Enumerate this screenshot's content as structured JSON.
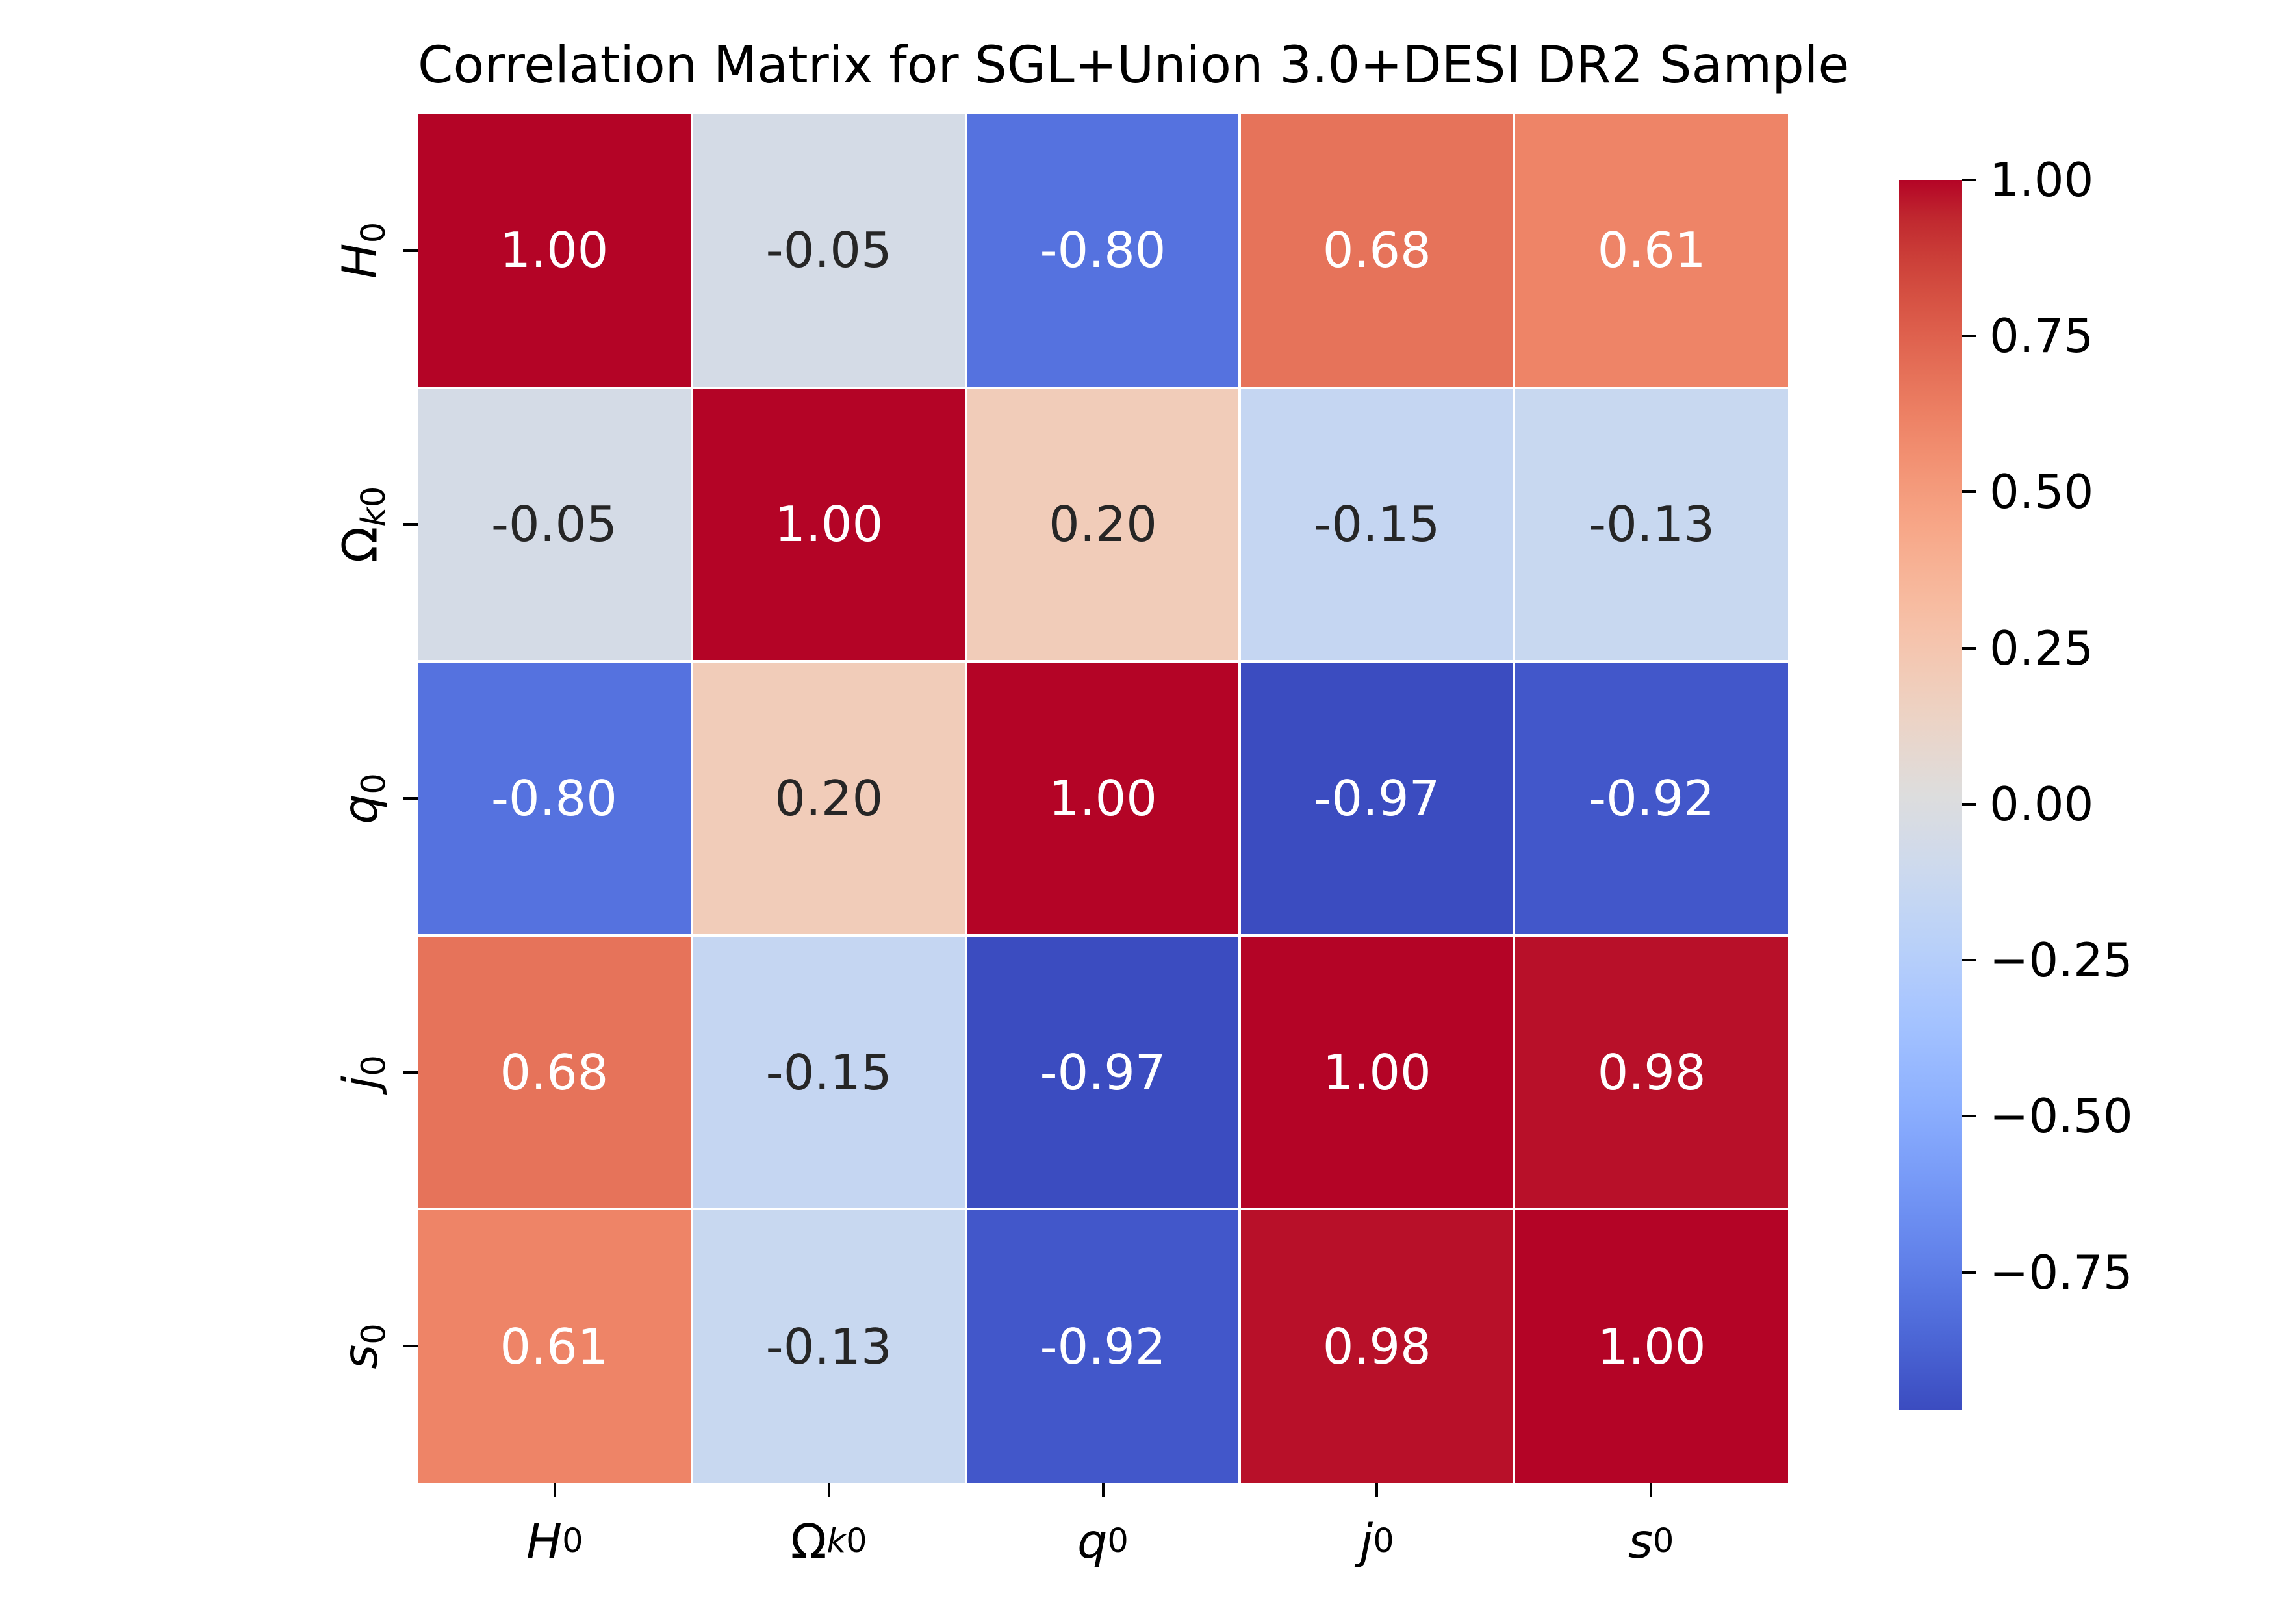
{
  "title": "Correlation Matrix for SGL+Union 3.0+DESI DR2 Sample",
  "chart_data": {
    "type": "heatmap",
    "title": "Correlation Matrix for SGL+Union 3.0+DESI DR2 Sample",
    "categories": [
      "H0",
      "Ωk0",
      "q0",
      "j0",
      "s0"
    ],
    "variables": [
      {
        "base": "H",
        "sub": "0",
        "italic": true
      },
      {
        "base": "Ω",
        "sub": "k0",
        "italic": false
      },
      {
        "base": "q",
        "sub": "0",
        "italic": true
      },
      {
        "base": "j",
        "sub": "0",
        "italic": true
      },
      {
        "base": "s",
        "sub": "0",
        "italic": true
      }
    ],
    "matrix": [
      [
        1.0,
        -0.05,
        -0.8,
        0.68,
        0.61
      ],
      [
        -0.05,
        1.0,
        0.2,
        -0.15,
        -0.13
      ],
      [
        -0.8,
        0.2,
        1.0,
        -0.97,
        -0.92
      ],
      [
        0.68,
        -0.15,
        -0.97,
        1.0,
        0.98
      ],
      [
        0.61,
        -0.13,
        -0.92,
        0.98,
        1.0
      ]
    ],
    "cell_labels": [
      [
        "1.00",
        "-0.05",
        "-0.80",
        "0.68",
        "0.61"
      ],
      [
        "-0.05",
        "1.00",
        "0.20",
        "-0.15",
        "-0.13"
      ],
      [
        "-0.80",
        "0.20",
        "1.00",
        "-0.97",
        "-0.92"
      ],
      [
        "0.68",
        "-0.15",
        "-0.97",
        "1.00",
        "0.98"
      ],
      [
        "0.61",
        "-0.13",
        "-0.92",
        "0.98",
        "1.00"
      ]
    ],
    "vmin": -0.97,
    "vmax": 1.0,
    "colormap": "coolwarm",
    "colormap_stops": [
      "#3B4CC0",
      "#445ACC",
      "#4D68D7",
      "#5775E1",
      "#6282EA",
      "#6C8EF1",
      "#779AF7",
      "#82A5FB",
      "#8DB0FE",
      "#98B9FF",
      "#A3C2FF",
      "#AEC9FD",
      "#B8D0F9",
      "#C2D5F4",
      "#CCD9EE",
      "#D5DBE6",
      "#DDDDDD",
      "#E5D8D1",
      "#ECD3C5",
      "#F1CCB9",
      "#F5C4AD",
      "#F7BBA0",
      "#F7B194",
      "#F7A687",
      "#F49A7B",
      "#F18D6F",
      "#EC7F63",
      "#E57058",
      "#DE604D",
      "#D55042",
      "#CB3E38",
      "#C0282F",
      "#B40426"
    ],
    "colorbar_ticks": [
      {
        "value": 1.0,
        "label": "1.00"
      },
      {
        "value": 0.75,
        "label": "0.75"
      },
      {
        "value": 0.5,
        "label": "0.50"
      },
      {
        "value": 0.25,
        "label": "0.25"
      },
      {
        "value": 0.0,
        "label": "0.00"
      },
      {
        "value": -0.25,
        "label": "−0.25"
      },
      {
        "value": -0.5,
        "label": "−0.50"
      },
      {
        "value": -0.75,
        "label": "−0.75"
      }
    ],
    "annotation_dark_color": "#262626",
    "annotation_light_color": "#FFFFFF",
    "gridline_color": "#FFFFFF",
    "legend_position": "right",
    "grid": false
  }
}
